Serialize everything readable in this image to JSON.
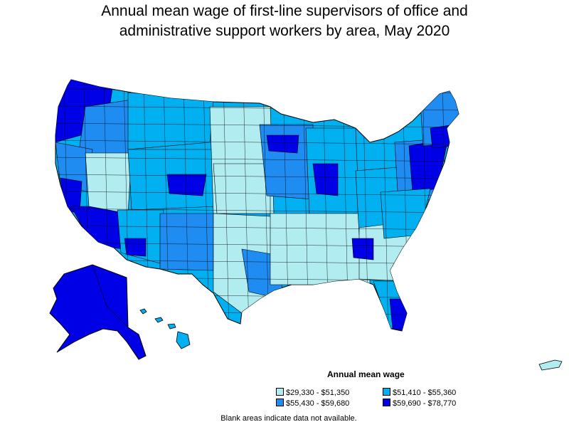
{
  "title": {
    "line1": "Annual mean wage of first-line supervisors of office and",
    "line2": "administrative support workers by area, May 2020"
  },
  "legend": {
    "title": "Annual mean wage",
    "items": [
      {
        "label": "$29,330 - $51,350",
        "color": "#b0ecf0"
      },
      {
        "label": "$51,410 - $55,360",
        "color": "#00b0f0"
      },
      {
        "label": "$55,430 - $59,680",
        "color": "#1e8cf0"
      },
      {
        "label": "$59,690 - $78,770",
        "color": "#0000e6"
      }
    ]
  },
  "note": "Blank areas indicate data not available.",
  "map_data": {
    "type": "choropleth",
    "region": "United States",
    "unit": "metropolitan and nonmetropolitan areas",
    "classes": [
      {
        "min": 29330,
        "max": 51350
      },
      {
        "min": 51410,
        "max": 55360
      },
      {
        "min": 55430,
        "max": 59680
      },
      {
        "min": 59690,
        "max": 78770
      }
    ]
  }
}
